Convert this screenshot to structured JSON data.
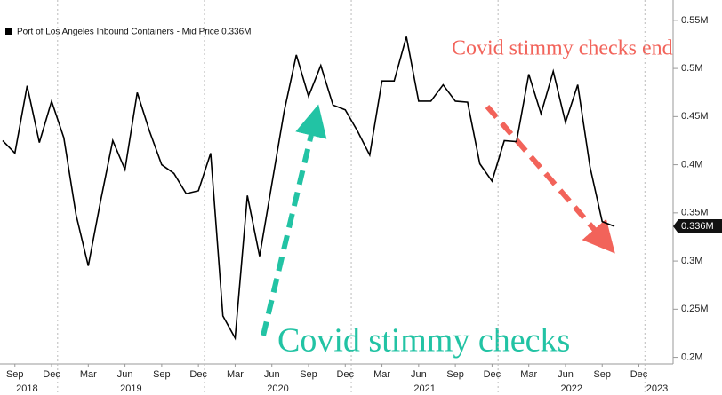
{
  "chart_data": {
    "type": "line",
    "categories": [
      null,
      "Sep",
      null,
      null,
      "Dec",
      null,
      null,
      "Mar",
      null,
      null,
      "Jun",
      null,
      null,
      "Sep",
      null,
      null,
      "Dec",
      null,
      null,
      "Mar",
      null,
      null,
      "Jun",
      null,
      null,
      "Sep",
      null,
      null,
      "Dec",
      null,
      null,
      "Mar",
      null,
      null,
      "Jun",
      null,
      null,
      "Sep",
      null,
      null,
      "Dec",
      null,
      null,
      "Mar",
      null,
      null,
      "Jun",
      null,
      null,
      "Sep",
      null,
      null,
      "Dec",
      null,
      null
    ],
    "years": [
      "2018",
      "2019",
      "2020",
      "2021",
      "2022",
      "2023"
    ],
    "series": [
      {
        "name": "Port of Los Angeles Inbound Containers - Mid Price 0.336M",
        "color": "#000000",
        "values": [
          0.425,
          0.412,
          0.482,
          0.423,
          0.466,
          0.428,
          0.348,
          0.295,
          0.362,
          0.425,
          0.395,
          0.475,
          0.435,
          0.4,
          0.391,
          0.37,
          0.373,
          0.412,
          0.243,
          0.22,
          0.368,
          0.305,
          0.38,
          0.455,
          0.514,
          0.471,
          0.503,
          0.462,
          0.457,
          0.435,
          0.41,
          0.487,
          0.487,
          0.533,
          0.466,
          0.466,
          0.483,
          0.466,
          0.465,
          0.401,
          0.383,
          0.425,
          0.424,
          0.494,
          0.453,
          0.497,
          0.444,
          0.483,
          0.398,
          0.341,
          0.336,
          null,
          null,
          null,
          null
        ],
        "value_labels": [
          null,
          null,
          null,
          null,
          null,
          null,
          null,
          null,
          null,
          null,
          null,
          null,
          null,
          null,
          null,
          null,
          null,
          null,
          null,
          null,
          null,
          null,
          null,
          null,
          null,
          null,
          null,
          null,
          null,
          null,
          null,
          null,
          null,
          null,
          null,
          null,
          null,
          null,
          null,
          null,
          null,
          null,
          null,
          null,
          null,
          null,
          null,
          null,
          null,
          null,
          "0.336M",
          null,
          null,
          null,
          null
        ]
      }
    ],
    "ylim": [
      0.195,
      0.56
    ],
    "yticks": [
      {
        "value": 0.2,
        "label": "0.2M"
      },
      {
        "value": 0.25,
        "label": "0.25M"
      },
      {
        "value": 0.3,
        "label": "0.3M"
      },
      {
        "value": 0.35,
        "label": "0.35M"
      },
      {
        "value": 0.4,
        "label": "0.4M"
      },
      {
        "value": 0.45,
        "label": "0.45M"
      },
      {
        "value": 0.5,
        "label": "0.5M"
      },
      {
        "value": 0.55,
        "label": "0.55M"
      }
    ],
    "annotations": [
      {
        "text": "Covid stimmy checks end",
        "color": "#f2635a"
      },
      {
        "text": "Covid stimmy checks",
        "color": "#22c3a4"
      }
    ]
  }
}
